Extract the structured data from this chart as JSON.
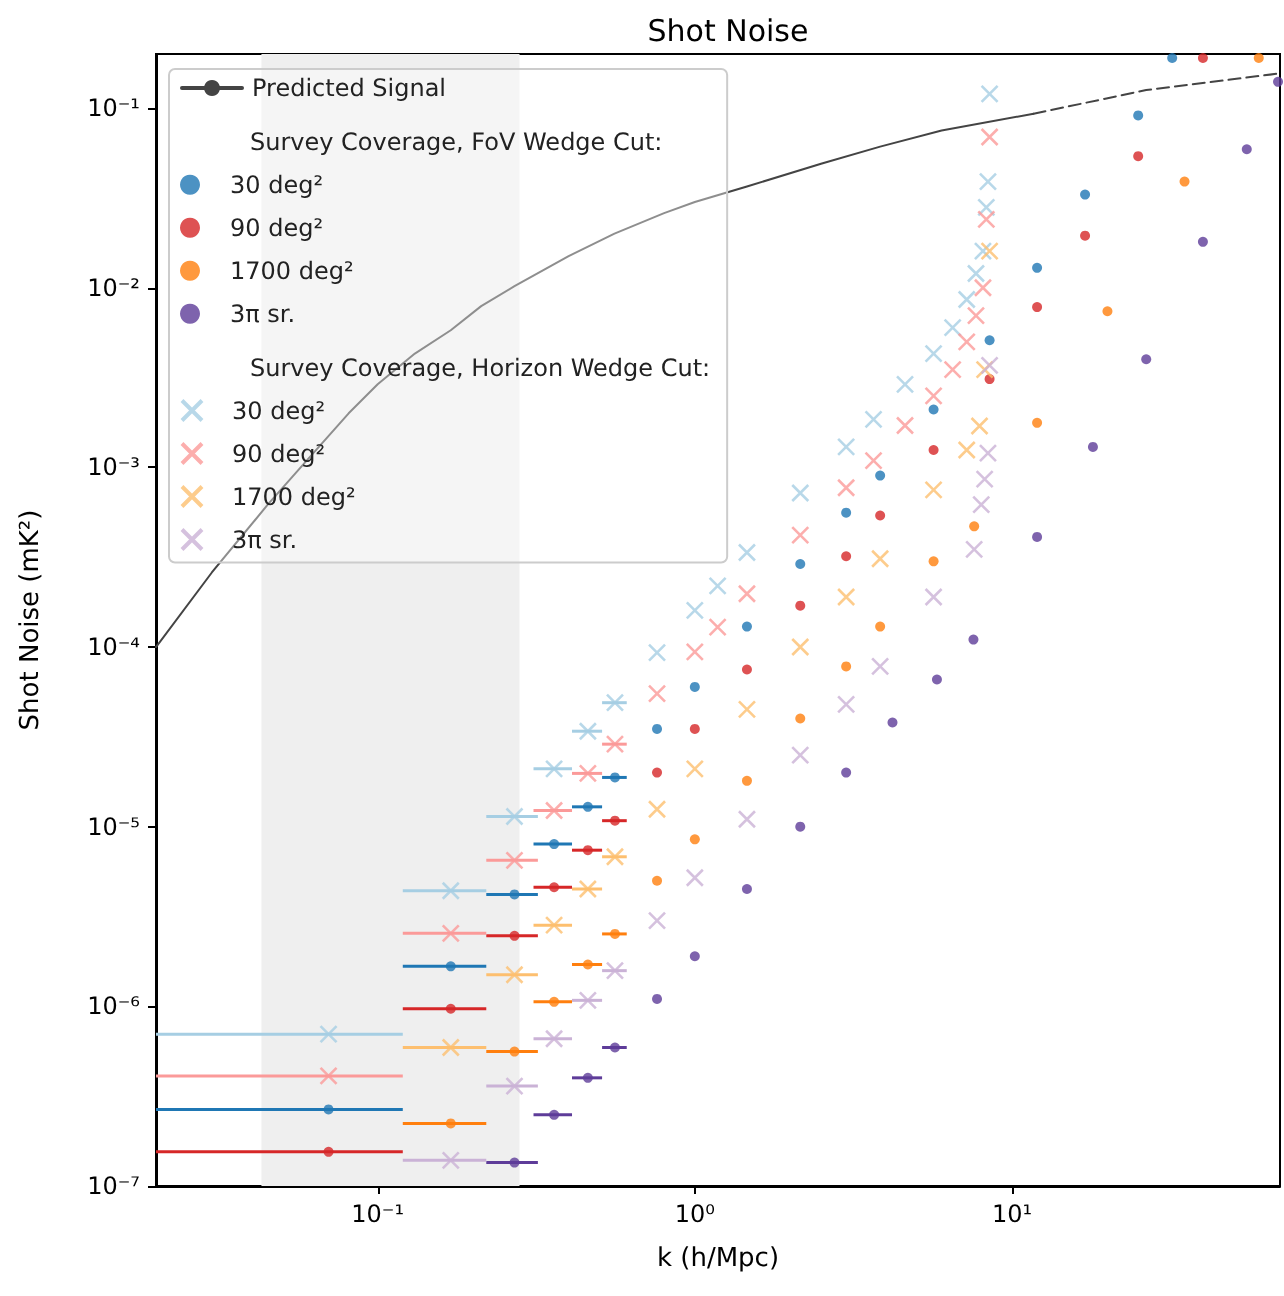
{
  "chart_data": {
    "type": "scatter",
    "title": "Shot Noise",
    "xlabel": "k (h/Mpc)",
    "ylabel": "Shot Noise (mK²)",
    "log": "xy",
    "legend": "top left",
    "xlim": [
      0.02,
      70
    ],
    "ylim": [
      1e-07,
      0.2
    ],
    "xticks": [
      {
        "value": 0.1,
        "label": "10⁻¹"
      },
      {
        "value": 1,
        "label": "10⁰"
      },
      {
        "value": 10,
        "label": "10¹"
      }
    ],
    "yticks": [
      {
        "value": 1e-07,
        "label": "10⁻⁷"
      },
      {
        "value": 1e-06,
        "label": "10⁻⁶"
      },
      {
        "value": 1e-05,
        "label": "10⁻⁵"
      },
      {
        "value": 0.0001,
        "label": "10⁻⁴"
      },
      {
        "value": 0.001,
        "label": "10⁻³"
      },
      {
        "value": 0.01,
        "label": "10⁻²"
      },
      {
        "value": 0.1,
        "label": "10⁻¹"
      }
    ],
    "bands": [
      {
        "axis": "x",
        "from": 0.043,
        "to": 0.28,
        "color": "#efefef"
      }
    ],
    "annotations": [
      "Survey Coverage, FoV Wedge Cut:",
      "Survey Coverage, Horizon Wedge Cut:"
    ],
    "series": [
      {
        "name": "Predicted Signal",
        "type": "line",
        "color": "#444444",
        "marker": "none",
        "line_style": "solid",
        "x": [
          0.02,
          0.03,
          0.045,
          0.06,
          0.081,
          0.1,
          0.131,
          0.17,
          0.212,
          0.27,
          0.4,
          0.558,
          0.8,
          1.0,
          1.46,
          2.5,
          3.84,
          6,
          11.7
        ],
        "values": [
          0.0001,
          0.00026,
          0.00062,
          0.0011,
          0.002,
          0.0029,
          0.0043,
          0.0058,
          0.0079,
          0.0102,
          0.015,
          0.02,
          0.026,
          0.03,
          0.0366,
          0.049,
          0.061,
          0.075,
          0.093
        ]
      },
      {
        "type": "line",
        "color": "#444444",
        "marker": "none",
        "line_style": "dashed",
        "x": [
          11.7,
          26.5,
          70
        ],
        "values": [
          0.093,
          0.126,
          0.156
        ]
      },
      {
        "name": "30 deg²",
        "color": "#1f77b4",
        "marker": "circle",
        "x": [
          0.07,
          0.17,
          0.27,
          0.36,
          0.46,
          0.56,
          0.76,
          1.0,
          1.46,
          2.15,
          3.0,
          3.84,
          5.66,
          8.5,
          12,
          17,
          25,
          32
        ],
        "values": [
          2.67e-07,
          1.67e-06,
          4.2e-06,
          8e-06,
          1.29e-05,
          1.88e-05,
          3.5e-05,
          6e-05,
          0.00013,
          0.00029,
          0.00056,
          0.0009,
          0.0021,
          0.0051,
          0.0129,
          0.033,
          0.091,
          0.19
        ],
        "xerrors": [
          [
            0.02,
            0.12
          ],
          0.05,
          0.05,
          0.05,
          0.05,
          0.05,
          null,
          null,
          null,
          null,
          null,
          null,
          null,
          null,
          null,
          null,
          null,
          null
        ]
      },
      {
        "name": "90 deg²",
        "color": "#d62728",
        "marker": "circle",
        "x": [
          0.07,
          0.17,
          0.27,
          0.36,
          0.46,
          0.56,
          0.76,
          1.0,
          1.46,
          2.15,
          3.0,
          3.84,
          5.66,
          8.5,
          12,
          17,
          25,
          40
        ],
        "values": [
          1.55e-07,
          9.7e-07,
          2.47e-06,
          4.6e-06,
          7.4e-06,
          1.08e-05,
          2e-05,
          3.5e-05,
          7.5e-05,
          0.00017,
          0.00032,
          0.00054,
          0.00125,
          0.0031,
          0.0078,
          0.0195,
          0.054,
          0.19
        ],
        "xerrors": [
          [
            0.02,
            0.12
          ],
          0.05,
          0.05,
          0.05,
          0.05,
          0.05,
          null,
          null,
          null,
          null,
          null,
          null,
          null,
          null,
          null,
          null,
          null,
          null
        ]
      },
      {
        "name": "1700 deg²",
        "color": "#ff7f0e",
        "marker": "circle",
        "x": [
          0.17,
          0.27,
          0.36,
          0.46,
          0.56,
          0.76,
          1.0,
          1.46,
          2.15,
          3.0,
          3.84,
          5.66,
          7.6,
          12,
          20,
          35,
          60
        ],
        "values": [
          2.23e-07,
          5.6e-07,
          1.06e-06,
          1.71e-06,
          2.53e-06,
          5e-06,
          8.5e-06,
          1.8e-05,
          4e-05,
          7.8e-05,
          0.00013,
          0.0003,
          0.00047,
          0.00177,
          0.0074,
          0.039,
          0.19
        ],
        "xerrors": [
          0.05,
          0.05,
          0.05,
          0.05,
          0.05,
          null,
          null,
          null,
          null,
          null,
          null,
          null,
          null,
          null,
          null,
          null,
          null
        ]
      },
      {
        "name": "3π sr.",
        "color": "#5e3c99",
        "marker": "circle",
        "x": [
          0.27,
          0.36,
          0.46,
          0.56,
          0.76,
          1.0,
          1.46,
          2.15,
          3.0,
          4.2,
          5.8,
          7.56,
          12,
          18,
          26.5,
          40,
          55,
          69
        ],
        "values": [
          1.35e-07,
          2.49e-07,
          4e-07,
          5.9e-07,
          1.1e-06,
          1.9e-06,
          4.5e-06,
          1e-05,
          2e-05,
          3.8e-05,
          6.6e-05,
          0.00011,
          0.00041,
          0.0013,
          0.004,
          0.018,
          0.059,
          0.14
        ],
        "xerrors": [
          0.05,
          0.05,
          0.05,
          0.05,
          null,
          null,
          null,
          null,
          null,
          null,
          null,
          null,
          null,
          null,
          null,
          null,
          null,
          null
        ]
      },
      {
        "name": "30 deg²",
        "color": "#a6cee3",
        "marker": "cross",
        "x": [
          0.07,
          0.17,
          0.27,
          0.36,
          0.46,
          0.56,
          0.76,
          1.0,
          1.18,
          1.46,
          2.15,
          3.0,
          3.66,
          4.6,
          5.66,
          6.5,
          7.2,
          7.7,
          8.1,
          8.3,
          8.4,
          8.5
        ],
        "values": [
          7e-07,
          4.4e-06,
          1.14e-05,
          2.1e-05,
          3.4e-05,
          4.9e-05,
          9.3e-05,
          0.00016,
          0.000219,
          0.000336,
          0.00072,
          0.0013,
          0.00185,
          0.0029,
          0.0043,
          0.006,
          0.0086,
          0.012,
          0.016,
          0.028,
          0.039,
          0.12
        ],
        "xerrors": [
          [
            0.02,
            0.12
          ],
          0.05,
          0.05,
          0.05,
          0.05,
          0.05,
          null,
          null,
          null,
          null,
          null,
          null,
          null,
          null,
          null,
          null,
          null,
          null,
          null,
          null,
          null,
          null
        ]
      },
      {
        "name": "90 deg²",
        "color": "#fb9a99",
        "marker": "cross",
        "x": [
          0.07,
          0.17,
          0.27,
          0.36,
          0.46,
          0.56,
          0.76,
          1.0,
          1.18,
          1.46,
          2.15,
          3.0,
          3.66,
          4.6,
          5.66,
          6.5,
          7.2,
          7.7,
          8.1,
          8.3,
          8.5
        ],
        "values": [
          4.1e-07,
          2.55e-06,
          6.5e-06,
          1.23e-05,
          1.98e-05,
          2.88e-05,
          5.5e-05,
          9.4e-05,
          0.000129,
          0.000198,
          0.00042,
          0.00077,
          0.00109,
          0.00171,
          0.0025,
          0.0035,
          0.005,
          0.007,
          0.01,
          0.024,
          0.069
        ],
        "xerrors": [
          [
            0.02,
            0.12
          ],
          0.05,
          0.05,
          0.05,
          0.05,
          0.05,
          null,
          null,
          null,
          null,
          null,
          null,
          null,
          null,
          null,
          null,
          null,
          null,
          null,
          null,
          null
        ]
      },
      {
        "name": "1700 deg²",
        "color": "#fdbf6f",
        "marker": "cross",
        "x": [
          0.17,
          0.27,
          0.36,
          0.46,
          0.56,
          0.76,
          1.0,
          1.46,
          2.15,
          3.0,
          3.84,
          5.66,
          7.2,
          7.9,
          8.2,
          8.5
        ],
        "values": [
          5.9e-07,
          1.5e-06,
          2.83e-06,
          4.5e-06,
          6.8e-06,
          1.25e-05,
          2.1e-05,
          4.5e-05,
          0.0001,
          0.00019,
          0.00031,
          0.00075,
          0.00125,
          0.0017,
          0.0035,
          0.016
        ],
        "xerrors": [
          0.05,
          0.05,
          0.05,
          0.05,
          0.05,
          null,
          null,
          null,
          null,
          null,
          null,
          null,
          null,
          null,
          null,
          null
        ]
      },
      {
        "name": "3π sr.",
        "color": "#cab2d6",
        "marker": "cross",
        "x": [
          0.17,
          0.27,
          0.36,
          0.46,
          0.56,
          0.76,
          1.0,
          1.46,
          2.15,
          3.0,
          3.84,
          5.66,
          7.6,
          8.0,
          8.2,
          8.4,
          8.5
        ],
        "values": [
          1.39e-07,
          3.6e-07,
          6.6e-07,
          1.08e-06,
          1.58e-06,
          3e-06,
          5.2e-06,
          1.1e-05,
          2.5e-05,
          4.8e-05,
          7.8e-05,
          0.00019,
          0.00035,
          0.00062,
          0.00086,
          0.0012,
          0.0037
        ],
        "xerrors": [
          0.05,
          0.05,
          0.05,
          0.05,
          0.05,
          null,
          null,
          null,
          null,
          null,
          null,
          null,
          null,
          null,
          null,
          null,
          null
        ]
      }
    ]
  }
}
